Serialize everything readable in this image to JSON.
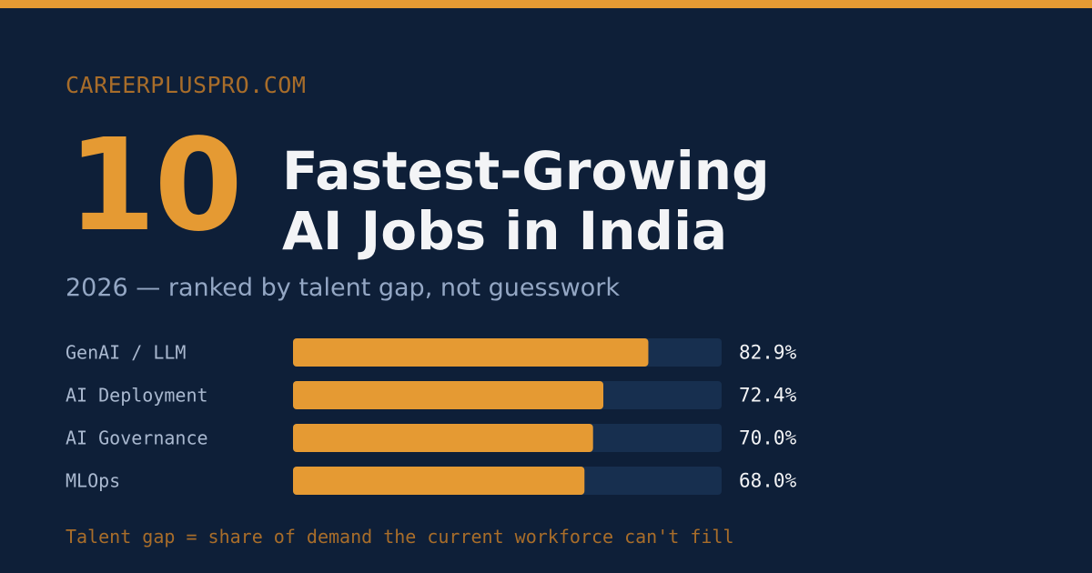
{
  "header": {
    "site": "CAREERPLUSPRO.COM",
    "big_number": "10",
    "title_line1": "Fastest-Growing",
    "title_line2": "AI Jobs in India",
    "subtitle": "2026 — ranked by talent gap, not guesswork"
  },
  "footnote": "Talent gap = share of demand the current workforce can't fill",
  "colors": {
    "background": "#0e1f38",
    "accent": "#e59a33",
    "track": "#172f4f",
    "label": "#a9b8cf",
    "value": "#f3f4f6"
  },
  "chart_data": {
    "type": "bar",
    "orientation": "horizontal",
    "categories": [
      "GenAI / LLM",
      "AI Deployment",
      "AI Governance",
      "MLOps"
    ],
    "values": [
      82.9,
      72.4,
      70.0,
      68.0
    ],
    "value_labels": [
      "82.9%",
      "72.4%",
      "70.0%",
      "68.0%"
    ],
    "xlim": [
      0,
      100
    ],
    "unit": "%",
    "grid": false
  }
}
